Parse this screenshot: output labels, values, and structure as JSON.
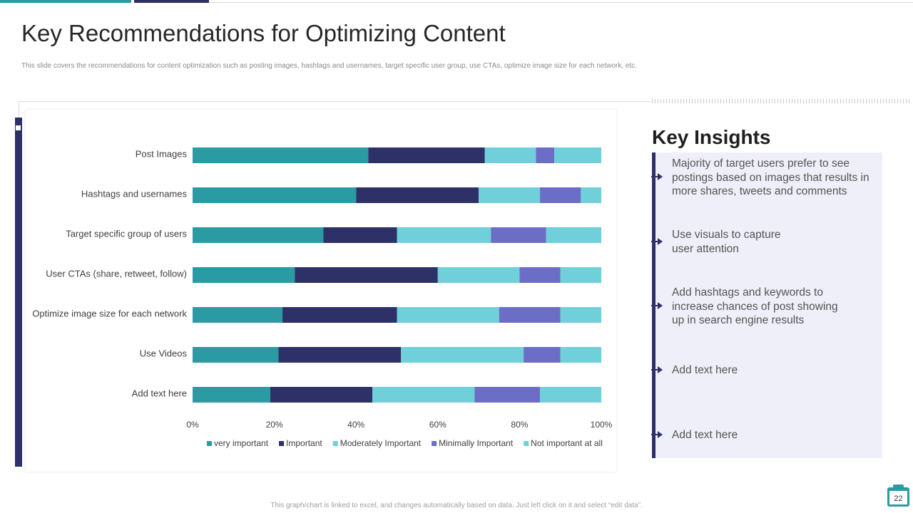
{
  "slide": {
    "title": "Key Recommendations for Optimizing Content",
    "subtitle": "This slide covers the recommendations for content optimization such as posting images,  hashtags and usernames, target specific user group, use CTAs, optimize image size for each network, etc.",
    "footer_note": "This graph/chart is linked to excel, and changes automatically based on data. Just left click on it and select “edit data”.",
    "page_number": "22"
  },
  "insights": {
    "title": "Key Insights",
    "items": [
      "Majority of target users prefer to see postings based on images that results in more shares, tweets and comments",
      "Use visuals to capture user attention",
      "Add hashtags and keywords to increase chances of post showing up in search engine results",
      "Add text here",
      "Add text here"
    ]
  },
  "colors": {
    "teal": "#2A9BA3",
    "navy": "#2E3068",
    "light_teal": "#6FD0DA",
    "periwinkle": "#6C6DC6",
    "panel": "#EEEFF8"
  },
  "chart_data": {
    "type": "bar",
    "orientation": "horizontal",
    "stacked": "percent",
    "categories": [
      "Post Images",
      "Hashtags and usernames",
      "Target  specific group of users",
      "User CTAs (share,  retweet,  follow)",
      "Optimize image size for each network",
      "Use Videos",
      "Add text here"
    ],
    "series": [
      {
        "name": "very important",
        "color": "#2A9BA3",
        "values": [
          43,
          40,
          32,
          25,
          22,
          21,
          19
        ]
      },
      {
        "name": "Important",
        "color": "#2E3068",
        "values": [
          28.5,
          30,
          18,
          35,
          28,
          30,
          25
        ]
      },
      {
        "name": "Moderately Important",
        "color": "#6FD0DA",
        "values": [
          12.5,
          15,
          23,
          20,
          25,
          30,
          25
        ]
      },
      {
        "name": "Minimally Important",
        "color": "#6C6DC6",
        "values": [
          4.5,
          10,
          13.5,
          10,
          15,
          9,
          16
        ]
      },
      {
        "name": "Not important at all",
        "color": "#6FD0DA",
        "values": [
          11.5,
          5,
          13.5,
          10,
          10,
          10,
          15
        ]
      }
    ],
    "x_ticks": [
      "0%",
      "20%",
      "40%",
      "60%",
      "80%",
      "100%"
    ],
    "xlim": [
      0,
      100
    ],
    "legend": "bottom"
  }
}
